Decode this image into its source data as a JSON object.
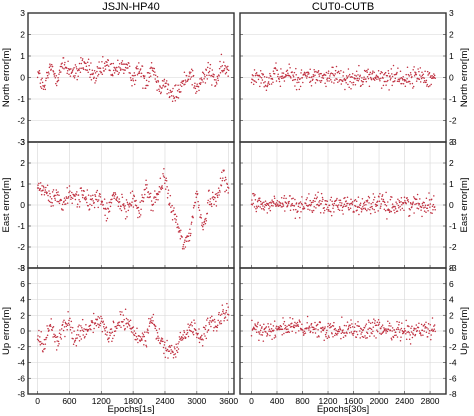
{
  "chart_data": [
    {
      "type": "scatter",
      "title": "JSJN-HP40",
      "ylabel": "North error[m]",
      "xlabel": "",
      "xlim": [
        -180,
        3700
      ],
      "ylim": [
        -3,
        3
      ],
      "x_ticks": [],
      "y_ticks": [
        -3,
        -2,
        -1,
        0,
        1,
        2,
        3
      ],
      "y_tick_side": "left",
      "grid": true,
      "marker_color": "#c03040",
      "series": [
        {
          "x": [
            0,
            120,
            240,
            360,
            480,
            600,
            720,
            840,
            960,
            1080,
            1200,
            1320,
            1440,
            1560,
            1680,
            1800,
            1920,
            2040,
            2160,
            2280,
            2400,
            2520,
            2640,
            2760,
            2880,
            3000,
            3120,
            3240,
            3360,
            3480,
            3600
          ],
          "y": [
            0.3,
            -0.6,
            0.5,
            0.0,
            0.6,
            0.4,
            0.1,
            0.7,
            0.4,
            0.0,
            0.3,
            0.6,
            0.2,
            0.6,
            0.4,
            0.0,
            0.4,
            -0.2,
            0.6,
            -0.4,
            -0.2,
            -0.9,
            -0.7,
            -0.2,
            0.3,
            -0.6,
            0.0,
            0.3,
            -0.2,
            0.5,
            0.2
          ]
        }
      ]
    },
    {
      "type": "scatter",
      "title": "CUT0-CUTB",
      "ylabel": "North error[m]",
      "xlabel": "",
      "xlim": [
        -180,
        3050
      ],
      "ylim": [
        -3,
        3
      ],
      "x_ticks": [],
      "y_ticks": [
        -3,
        -2,
        -1,
        0,
        1,
        2,
        3
      ],
      "y_tick_side": "right",
      "grid": true,
      "marker_color": "#c03040",
      "series": [
        {
          "x": [
            0,
            120,
            240,
            360,
            480,
            600,
            720,
            840,
            960,
            1080,
            1200,
            1320,
            1440,
            1560,
            1680,
            1800,
            1920,
            2040,
            2160,
            2280,
            2400,
            2520,
            2640,
            2760,
            2880
          ],
          "y": [
            0.0,
            0.2,
            -0.2,
            0.1,
            0.0,
            0.2,
            -0.1,
            0.1,
            0.0,
            0.1,
            -0.1,
            0.2,
            0.0,
            -0.1,
            0.1,
            0.0,
            0.1,
            -0.1,
            0.0,
            0.1,
            -0.1,
            0.0,
            0.1,
            0.0,
            0.0
          ]
        }
      ]
    },
    {
      "type": "scatter",
      "title": "",
      "ylabel": "East error[m]",
      "xlabel": "",
      "xlim": [
        -180,
        3700
      ],
      "ylim": [
        -3,
        3
      ],
      "x_ticks": [
        0,
        600,
        1200,
        1800,
        2400,
        3000,
        3600
      ],
      "y_ticks": [
        -3,
        -2,
        -1,
        0,
        1,
        2,
        3
      ],
      "y_tick_side": "left",
      "grid": true,
      "marker_color": "#c03040",
      "series": [
        {
          "x": [
            0,
            120,
            240,
            360,
            480,
            600,
            720,
            840,
            960,
            1080,
            1200,
            1320,
            1440,
            1560,
            1680,
            1800,
            1920,
            2040,
            2160,
            2280,
            2400,
            2520,
            2640,
            2760,
            2880,
            3000,
            3120,
            3240,
            3360,
            3480,
            3600
          ],
          "y": [
            0.6,
            0.9,
            0.2,
            0.5,
            0.0,
            0.5,
            0.3,
            0.6,
            0.0,
            0.4,
            0.2,
            -0.4,
            0.5,
            0.0,
            -0.2,
            0.5,
            -0.5,
            1.0,
            0.0,
            0.6,
            1.3,
            -0.2,
            -1.0,
            -2.0,
            -1.2,
            0.6,
            -1.2,
            0.4,
            0.2,
            1.5,
            0.6
          ]
        }
      ]
    },
    {
      "type": "scatter",
      "title": "",
      "ylabel": "East error[m]",
      "xlabel": "",
      "xlim": [
        -180,
        3050
      ],
      "ylim": [
        -3,
        3
      ],
      "x_ticks": [
        0,
        400,
        800,
        1200,
        1600,
        2000,
        2400,
        2800
      ],
      "y_ticks": [
        -3,
        -2,
        -1,
        0,
        1,
        2,
        3
      ],
      "y_tick_side": "right",
      "grid": true,
      "marker_color": "#c03040",
      "series": [
        {
          "x": [
            0,
            120,
            240,
            360,
            480,
            600,
            720,
            840,
            960,
            1080,
            1200,
            1320,
            1440,
            1560,
            1680,
            1800,
            1920,
            2040,
            2160,
            2280,
            2400,
            2520,
            2640,
            2760,
            2880
          ],
          "y": [
            0.3,
            0.1,
            -0.1,
            0.1,
            0.0,
            0.1,
            -0.1,
            0.1,
            0.0,
            0.1,
            -0.1,
            0.0,
            0.1,
            0.0,
            -0.1,
            0.1,
            0.0,
            0.1,
            -0.1,
            0.0,
            0.1,
            0.0,
            0.1,
            0.0,
            0.1
          ]
        }
      ]
    },
    {
      "type": "scatter",
      "title": "",
      "ylabel": "Up error[m]",
      "xlabel": "Epochs[1s]",
      "xlim": [
        -180,
        3700
      ],
      "ylim": [
        -8,
        8
      ],
      "x_ticks": [
        0,
        600,
        1200,
        1800,
        2400,
        3000,
        3600
      ],
      "y_ticks": [
        -8,
        -6,
        -4,
        -2,
        0,
        2,
        4,
        6,
        8
      ],
      "y_tick_side": "left",
      "grid": true,
      "marker_color": "#c03040",
      "series": [
        {
          "x": [
            0,
            120,
            240,
            360,
            480,
            600,
            720,
            840,
            960,
            1080,
            1200,
            1320,
            1440,
            1560,
            1680,
            1800,
            1920,
            2040,
            2160,
            2280,
            2400,
            2520,
            2640,
            2760,
            2880,
            3000,
            3120,
            3240,
            3360,
            3480,
            3600
          ],
          "y": [
            -0.5,
            -2.0,
            1.0,
            -1.5,
            0.5,
            1.0,
            -1.0,
            0.5,
            0.0,
            1.5,
            1.0,
            -1.0,
            0.0,
            1.5,
            1.0,
            0.0,
            -1.0,
            -0.5,
            1.5,
            -1.0,
            -2.0,
            -3.0,
            -2.0,
            -0.5,
            0.5,
            0.0,
            -1.0,
            1.0,
            0.5,
            2.0,
            2.0
          ]
        }
      ]
    },
    {
      "type": "scatter",
      "title": "",
      "ylabel": "Up error[m]",
      "xlabel": "Epochs[30s]",
      "xlim": [
        -180,
        3050
      ],
      "ylim": [
        -8,
        8
      ],
      "x_ticks": [
        0,
        400,
        800,
        1200,
        1600,
        2000,
        2400,
        2800
      ],
      "y_ticks": [
        -8,
        -6,
        -4,
        -2,
        0,
        2,
        4,
        6,
        8
      ],
      "y_tick_side": "right",
      "grid": true,
      "marker_color": "#c03040",
      "series": [
        {
          "x": [
            0,
            120,
            240,
            360,
            480,
            600,
            720,
            840,
            960,
            1080,
            1200,
            1320,
            1440,
            1560,
            1680,
            1800,
            1920,
            2040,
            2160,
            2280,
            2400,
            2520,
            2640,
            2760,
            2880
          ],
          "y": [
            0.5,
            0.0,
            0.3,
            0.2,
            0.6,
            0.4,
            0.5,
            0.2,
            0.3,
            0.1,
            0.0,
            0.3,
            0.4,
            0.2,
            0.1,
            0.0,
            0.3,
            0.1,
            0.4,
            -0.1,
            0.2,
            0.0,
            0.1,
            0.2,
            0.0
          ]
        }
      ]
    }
  ]
}
